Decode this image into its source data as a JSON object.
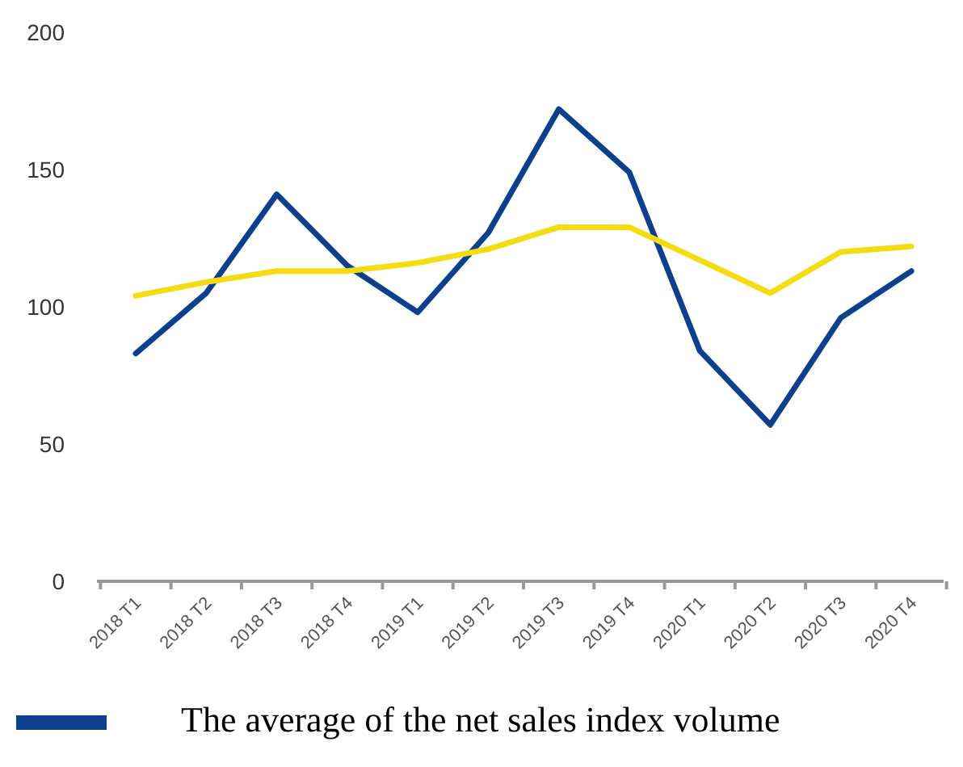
{
  "chart_data": {
    "type": "line",
    "categories": [
      "2018 T1",
      "2018 T2",
      "2018 T3",
      "2018 T4",
      "2019 T1",
      "2019 T2",
      "2019 T3",
      "2019 T4",
      "2020 T1",
      "2020 T2",
      "2020 T3",
      "2020 T4"
    ],
    "series": [
      {
        "name": "The average of the net sales index volume",
        "color": "#0d3f8f",
        "values": [
          83,
          105,
          141,
          115,
          98,
          127,
          172,
          149,
          84,
          57,
          96,
          113
        ]
      },
      {
        "color": "#f5dc12",
        "values": [
          104,
          109,
          113,
          113,
          116,
          121,
          129,
          129,
          117,
          105,
          120,
          122
        ]
      }
    ],
    "ylim": [
      0,
      200
    ],
    "yticks": [
      0,
      50,
      100,
      150,
      200
    ],
    "grid": false,
    "legend": "bottom"
  }
}
